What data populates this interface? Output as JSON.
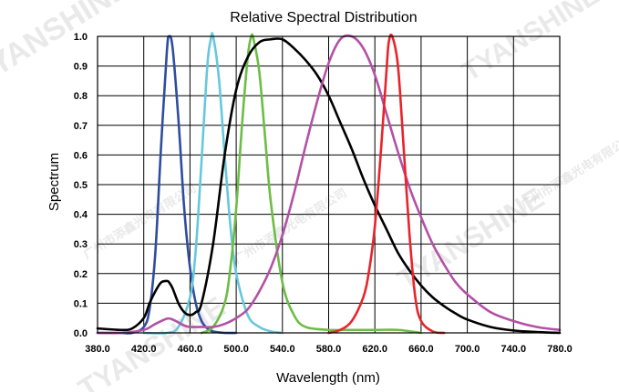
{
  "chart_data": {
    "type": "line",
    "title": "Relative Spectral Distribution",
    "xlabel": "Wavelength (nm)",
    "ylabel": "Spectrum",
    "xlim": [
      380,
      780
    ],
    "ylim": [
      0,
      1.0
    ],
    "x_ticks": [
      "380.0",
      "420.0",
      "460.0",
      "500.0",
      "540.0",
      "580.0",
      "620.0",
      "660.0",
      "700.0",
      "740.0",
      "780.0"
    ],
    "y_ticks": [
      "0.0",
      "0.1",
      "0.2",
      "0.3",
      "0.4",
      "0.5",
      "0.6",
      "0.7",
      "0.8",
      "0.9",
      "1.0"
    ],
    "grid": true,
    "series": [
      {
        "color": "#2f4d9e",
        "x": [
          380,
          400,
          410,
          420,
          425,
          430,
          435,
          440,
          442,
          445,
          450,
          455,
          460,
          465,
          470,
          475,
          480,
          490,
          500
        ],
        "values": [
          0.0,
          0.0,
          0.0,
          0.02,
          0.08,
          0.27,
          0.63,
          0.95,
          1.0,
          0.96,
          0.72,
          0.42,
          0.22,
          0.1,
          0.04,
          0.015,
          0.005,
          0.0,
          0.0
        ]
      },
      {
        "color": "#66c8dc",
        "x": [
          420,
          440,
          450,
          460,
          465,
          470,
          475,
          478,
          480,
          485,
          490,
          495,
          500,
          510,
          520,
          530,
          540
        ],
        "values": [
          0.0,
          0.0,
          0.02,
          0.12,
          0.28,
          0.58,
          0.9,
          0.99,
          1.0,
          0.86,
          0.6,
          0.36,
          0.2,
          0.06,
          0.02,
          0.005,
          0.0
        ]
      },
      {
        "color": "#6cbd45",
        "x": [
          470,
          480,
          490,
          495,
          500,
          505,
          510,
          513,
          515,
          520,
          525,
          530,
          540,
          550,
          560,
          580,
          600,
          620,
          640,
          660
        ],
        "values": [
          0.0,
          0.02,
          0.1,
          0.22,
          0.42,
          0.7,
          0.93,
          1.0,
          0.99,
          0.88,
          0.66,
          0.44,
          0.17,
          0.06,
          0.02,
          0.01,
          0.01,
          0.01,
          0.01,
          0.0
        ]
      },
      {
        "color": "#000000",
        "x": [
          380,
          400,
          410,
          420,
          425,
          430,
          435,
          440,
          442,
          445,
          450,
          455,
          460,
          465,
          470,
          480,
          490,
          500,
          510,
          520,
          530,
          540,
          550,
          560,
          570,
          580,
          590,
          600,
          610,
          620,
          630,
          640,
          650,
          660,
          670,
          680,
          690,
          700,
          720,
          740,
          760,
          780
        ],
        "values": [
          0.015,
          0.01,
          0.015,
          0.05,
          0.1,
          0.14,
          0.17,
          0.175,
          0.17,
          0.15,
          0.1,
          0.07,
          0.06,
          0.07,
          0.1,
          0.3,
          0.6,
          0.82,
          0.93,
          0.98,
          0.99,
          0.99,
          0.96,
          0.92,
          0.87,
          0.8,
          0.71,
          0.62,
          0.52,
          0.43,
          0.35,
          0.27,
          0.21,
          0.16,
          0.12,
          0.09,
          0.065,
          0.045,
          0.02,
          0.008,
          0.003,
          0.0
        ]
      },
      {
        "color": "#b351a6",
        "x": [
          380,
          400,
          420,
          430,
          440,
          445,
          450,
          455,
          460,
          470,
          480,
          490,
          500,
          510,
          520,
          530,
          540,
          550,
          560,
          570,
          580,
          590,
          600,
          610,
          620,
          630,
          640,
          650,
          660,
          670,
          680,
          690,
          700,
          720,
          740,
          760,
          780
        ],
        "values": [
          0.0,
          0.0,
          0.01,
          0.03,
          0.048,
          0.045,
          0.035,
          0.025,
          0.02,
          0.02,
          0.02,
          0.03,
          0.05,
          0.08,
          0.14,
          0.22,
          0.33,
          0.47,
          0.63,
          0.78,
          0.91,
          0.99,
          1.0,
          0.96,
          0.87,
          0.74,
          0.61,
          0.49,
          0.39,
          0.3,
          0.23,
          0.17,
          0.13,
          0.07,
          0.04,
          0.02,
          0.01
        ]
      },
      {
        "color": "#e8242b",
        "x": [
          580,
          590,
          600,
          610,
          615,
          620,
          625,
          630,
          632,
          635,
          640,
          645,
          650,
          655,
          660,
          670,
          680
        ],
        "values": [
          0.0,
          0.01,
          0.04,
          0.12,
          0.21,
          0.36,
          0.6,
          0.88,
          0.98,
          1.0,
          0.9,
          0.62,
          0.33,
          0.12,
          0.04,
          0.005,
          0.0
        ]
      }
    ]
  },
  "watermark": {
    "brand": "TYANSHINE",
    "company": "广州市添鑫光电有限公司"
  }
}
